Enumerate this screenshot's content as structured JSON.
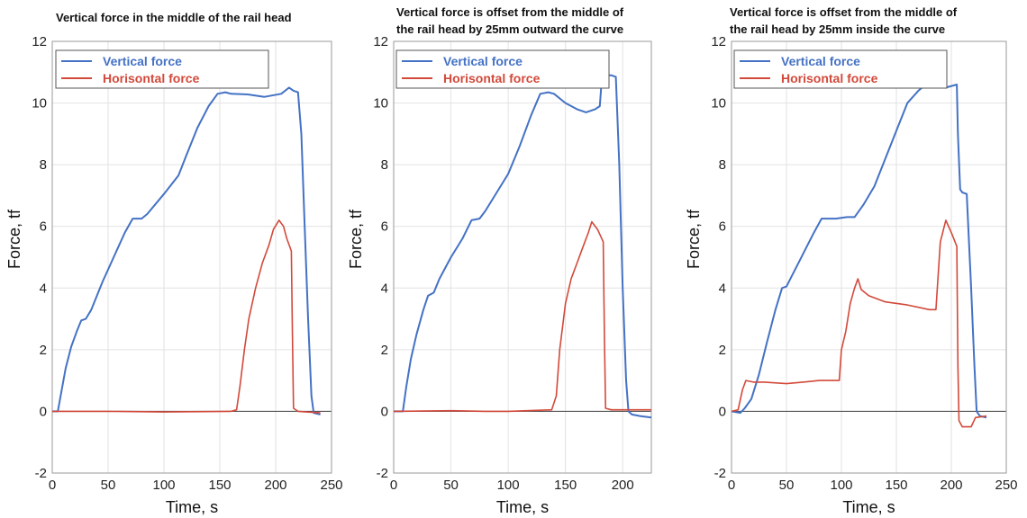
{
  "colors": {
    "vertical": "#4472C4",
    "horizontal": "#D2493A",
    "grid": "#E2E2E2",
    "zero_line": "#444444"
  },
  "chart_data": [
    {
      "type": "line",
      "title_lines": [
        "Vertical force in the middle of the rail head"
      ],
      "xlabel": "Time, s",
      "ylabel": "Force, tf",
      "xlim": [
        0,
        250
      ],
      "ylim": [
        -2,
        12
      ],
      "xticks": [
        0,
        50,
        100,
        150,
        200,
        250
      ],
      "yticks": [
        -2,
        0,
        2,
        4,
        6,
        8,
        10,
        12
      ],
      "grid": true,
      "legend": "top-left",
      "series": [
        {
          "name": "Vertical force",
          "color": "#4472C4",
          "points": [
            [
              0,
              0
            ],
            [
              5,
              0
            ],
            [
              8,
              0.6
            ],
            [
              12,
              1.4
            ],
            [
              17,
              2.1
            ],
            [
              22,
              2.6
            ],
            [
              26,
              2.95
            ],
            [
              30,
              3.0
            ],
            [
              35,
              3.3
            ],
            [
              45,
              4.2
            ],
            [
              55,
              5.0
            ],
            [
              65,
              5.8
            ],
            [
              72,
              6.25
            ],
            [
              80,
              6.25
            ],
            [
              85,
              6.4
            ],
            [
              100,
              7.05
            ],
            [
              113,
              7.65
            ],
            [
              120,
              8.3
            ],
            [
              130,
              9.2
            ],
            [
              140,
              9.9
            ],
            [
              148,
              10.3
            ],
            [
              155,
              10.35
            ],
            [
              160,
              10.3
            ],
            [
              175,
              10.28
            ],
            [
              190,
              10.2
            ],
            [
              205,
              10.3
            ],
            [
              212,
              10.5
            ],
            [
              216,
              10.4
            ],
            [
              220,
              10.35
            ],
            [
              223,
              9.0
            ],
            [
              226,
              6.0
            ],
            [
              229,
              3.0
            ],
            [
              232,
              0.5
            ],
            [
              234,
              -0.05
            ],
            [
              240,
              -0.1
            ]
          ]
        },
        {
          "name": "Horisontal force",
          "color": "#D2493A",
          "points": [
            [
              0,
              0
            ],
            [
              50,
              0
            ],
            [
              100,
              -0.02
            ],
            [
              160,
              0
            ],
            [
              165,
              0.05
            ],
            [
              168,
              0.8
            ],
            [
              172,
              2.0
            ],
            [
              176,
              3.0
            ],
            [
              182,
              4.0
            ],
            [
              188,
              4.8
            ],
            [
              194,
              5.4
            ],
            [
              198,
              5.9
            ],
            [
              203,
              6.2
            ],
            [
              207,
              6.0
            ],
            [
              210,
              5.6
            ],
            [
              214,
              5.2
            ],
            [
              215,
              2.5
            ],
            [
              216,
              0.1
            ],
            [
              220,
              0
            ],
            [
              240,
              -0.05
            ]
          ]
        }
      ]
    },
    {
      "type": "line",
      "title_lines": [
        "Vertical force is offset from the middle of",
        "the rail head by 25mm outward the curve"
      ],
      "xlabel": "Time, s",
      "ylabel": "Force, tf",
      "xlim": [
        0,
        225
      ],
      "ylim": [
        -2,
        12
      ],
      "xticks": [
        0,
        50,
        100,
        150,
        200
      ],
      "yticks": [
        -2,
        0,
        2,
        4,
        6,
        8,
        10,
        12
      ],
      "grid": true,
      "legend": "top-left",
      "series": [
        {
          "name": "Vertical force",
          "color": "#4472C4",
          "points": [
            [
              0,
              0
            ],
            [
              8,
              0
            ],
            [
              11,
              0.8
            ],
            [
              15,
              1.7
            ],
            [
              20,
              2.5
            ],
            [
              26,
              3.3
            ],
            [
              30,
              3.75
            ],
            [
              35,
              3.85
            ],
            [
              40,
              4.3
            ],
            [
              50,
              5.0
            ],
            [
              60,
              5.6
            ],
            [
              68,
              6.2
            ],
            [
              75,
              6.25
            ],
            [
              80,
              6.5
            ],
            [
              90,
              7.1
            ],
            [
              100,
              7.7
            ],
            [
              110,
              8.6
            ],
            [
              120,
              9.6
            ],
            [
              128,
              10.3
            ],
            [
              135,
              10.35
            ],
            [
              140,
              10.3
            ],
            [
              150,
              10.0
            ],
            [
              160,
              9.8
            ],
            [
              168,
              9.7
            ],
            [
              176,
              9.8
            ],
            [
              180,
              9.9
            ],
            [
              182,
              10.9
            ],
            [
              190,
              10.9
            ],
            [
              194,
              10.85
            ],
            [
              197,
              8.0
            ],
            [
              200,
              4.0
            ],
            [
              203,
              1.0
            ],
            [
              205,
              0
            ],
            [
              208,
              -0.1
            ],
            [
              215,
              -0.15
            ],
            [
              225,
              -0.2
            ]
          ]
        },
        {
          "name": "Horisontal force",
          "color": "#D2493A",
          "points": [
            [
              0,
              0
            ],
            [
              50,
              0.02
            ],
            [
              80,
              0
            ],
            [
              100,
              0
            ],
            [
              138,
              0.05
            ],
            [
              142,
              0.5
            ],
            [
              145,
              2.0
            ],
            [
              150,
              3.5
            ],
            [
              155,
              4.3
            ],
            [
              160,
              4.8
            ],
            [
              165,
              5.3
            ],
            [
              170,
              5.8
            ],
            [
              173,
              6.15
            ],
            [
              178,
              5.9
            ],
            [
              183,
              5.5
            ],
            [
              184,
              2.5
            ],
            [
              185,
              0.1
            ],
            [
              190,
              0.05
            ],
            [
              225,
              0.05
            ]
          ]
        }
      ]
    },
    {
      "type": "line",
      "title_lines": [
        "Vertical force is offset from the middle of",
        "the rail head by 25mm inside the curve"
      ],
      "xlabel": "Time, s",
      "ylabel": "Force, tf",
      "xlim": [
        0,
        250
      ],
      "ylim": [
        -2,
        12
      ],
      "xticks": [
        0,
        50,
        100,
        150,
        200,
        250
      ],
      "yticks": [
        -2,
        0,
        2,
        4,
        6,
        8,
        10,
        12
      ],
      "grid": true,
      "legend": "top-left",
      "series": [
        {
          "name": "Vertical force",
          "color": "#4472C4",
          "points": [
            [
              0,
              0
            ],
            [
              8,
              -0.05
            ],
            [
              12,
              0.1
            ],
            [
              18,
              0.4
            ],
            [
              25,
              1.2
            ],
            [
              32,
              2.2
            ],
            [
              40,
              3.3
            ],
            [
              46,
              4.0
            ],
            [
              50,
              4.05
            ],
            [
              55,
              4.4
            ],
            [
              65,
              5.1
            ],
            [
              75,
              5.8
            ],
            [
              82,
              6.25
            ],
            [
              95,
              6.25
            ],
            [
              105,
              6.3
            ],
            [
              112,
              6.3
            ],
            [
              120,
              6.7
            ],
            [
              130,
              7.3
            ],
            [
              140,
              8.2
            ],
            [
              150,
              9.1
            ],
            [
              160,
              10.0
            ],
            [
              170,
              10.4
            ],
            [
              175,
              10.55
            ],
            [
              185,
              10.5
            ],
            [
              195,
              10.5
            ],
            [
              205,
              10.6
            ],
            [
              206,
              9.0
            ],
            [
              208,
              7.2
            ],
            [
              210,
              7.1
            ],
            [
              214,
              7.05
            ],
            [
              218,
              4.0
            ],
            [
              221,
              1.5
            ],
            [
              223,
              0
            ],
            [
              226,
              -0.15
            ],
            [
              232,
              -0.2
            ]
          ]
        },
        {
          "name": "Horisontal force",
          "color": "#D2493A",
          "points": [
            [
              0,
              0
            ],
            [
              6,
              0.05
            ],
            [
              10,
              0.7
            ],
            [
              13,
              1.0
            ],
            [
              20,
              0.95
            ],
            [
              30,
              0.95
            ],
            [
              50,
              0.9
            ],
            [
              65,
              0.95
            ],
            [
              80,
              1.0
            ],
            [
              90,
              1.0
            ],
            [
              98,
              1.0
            ],
            [
              100,
              2.0
            ],
            [
              104,
              2.6
            ],
            [
              108,
              3.5
            ],
            [
              112,
              4.0
            ],
            [
              115,
              4.3
            ],
            [
              118,
              3.95
            ],
            [
              125,
              3.75
            ],
            [
              140,
              3.55
            ],
            [
              160,
              3.45
            ],
            [
              180,
              3.3
            ],
            [
              186,
              3.3
            ],
            [
              190,
              5.5
            ],
            [
              195,
              6.2
            ],
            [
              200,
              5.8
            ],
            [
              205,
              5.35
            ],
            [
              206,
              1.5
            ],
            [
              207,
              -0.3
            ],
            [
              210,
              -0.5
            ],
            [
              218,
              -0.5
            ],
            [
              222,
              -0.2
            ],
            [
              232,
              -0.15
            ]
          ]
        }
      ]
    }
  ]
}
